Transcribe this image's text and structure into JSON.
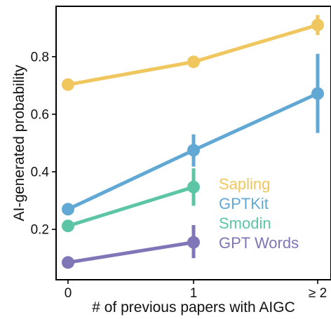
{
  "chart_data": {
    "type": "line",
    "xlabel": "# of previous papers with AIGC",
    "ylabel": "AI-generated probability",
    "categories": [
      "0",
      "1",
      "≥ 2"
    ],
    "ylim": [
      0.025,
      0.975
    ],
    "yticks": [
      0.2,
      0.4,
      0.6,
      0.8
    ],
    "ytick_labels": [
      "0.2",
      "0.4",
      "0.6",
      "0.8"
    ],
    "grid": false,
    "legend_position": "lower-right",
    "series": [
      {
        "name": "Sapling",
        "color": "#F0C75E",
        "values": [
          0.703,
          0.782,
          0.91
        ],
        "error": [
          [
            0.703,
            0.703
          ],
          [
            0.782,
            0.782
          ],
          [
            0.875,
            0.945
          ]
        ]
      },
      {
        "name": "GPTKit",
        "color": "#62A8D5",
        "values": [
          0.27,
          0.475,
          0.672
        ],
        "error": [
          [
            0.27,
            0.27
          ],
          [
            0.418,
            0.53
          ],
          [
            0.535,
            0.81
          ]
        ]
      },
      {
        "name": "Smodin",
        "color": "#5CC5A6",
        "values": [
          0.212,
          0.347,
          null
        ],
        "error": [
          [
            0.212,
            0.212
          ],
          [
            0.282,
            0.412
          ],
          null
        ]
      },
      {
        "name": "GPT Words",
        "color": "#7F76B7",
        "values": [
          0.085,
          0.155,
          null
        ],
        "error": [
          [
            0.085,
            0.085
          ],
          [
            0.1,
            0.215
          ],
          null
        ]
      }
    ]
  }
}
